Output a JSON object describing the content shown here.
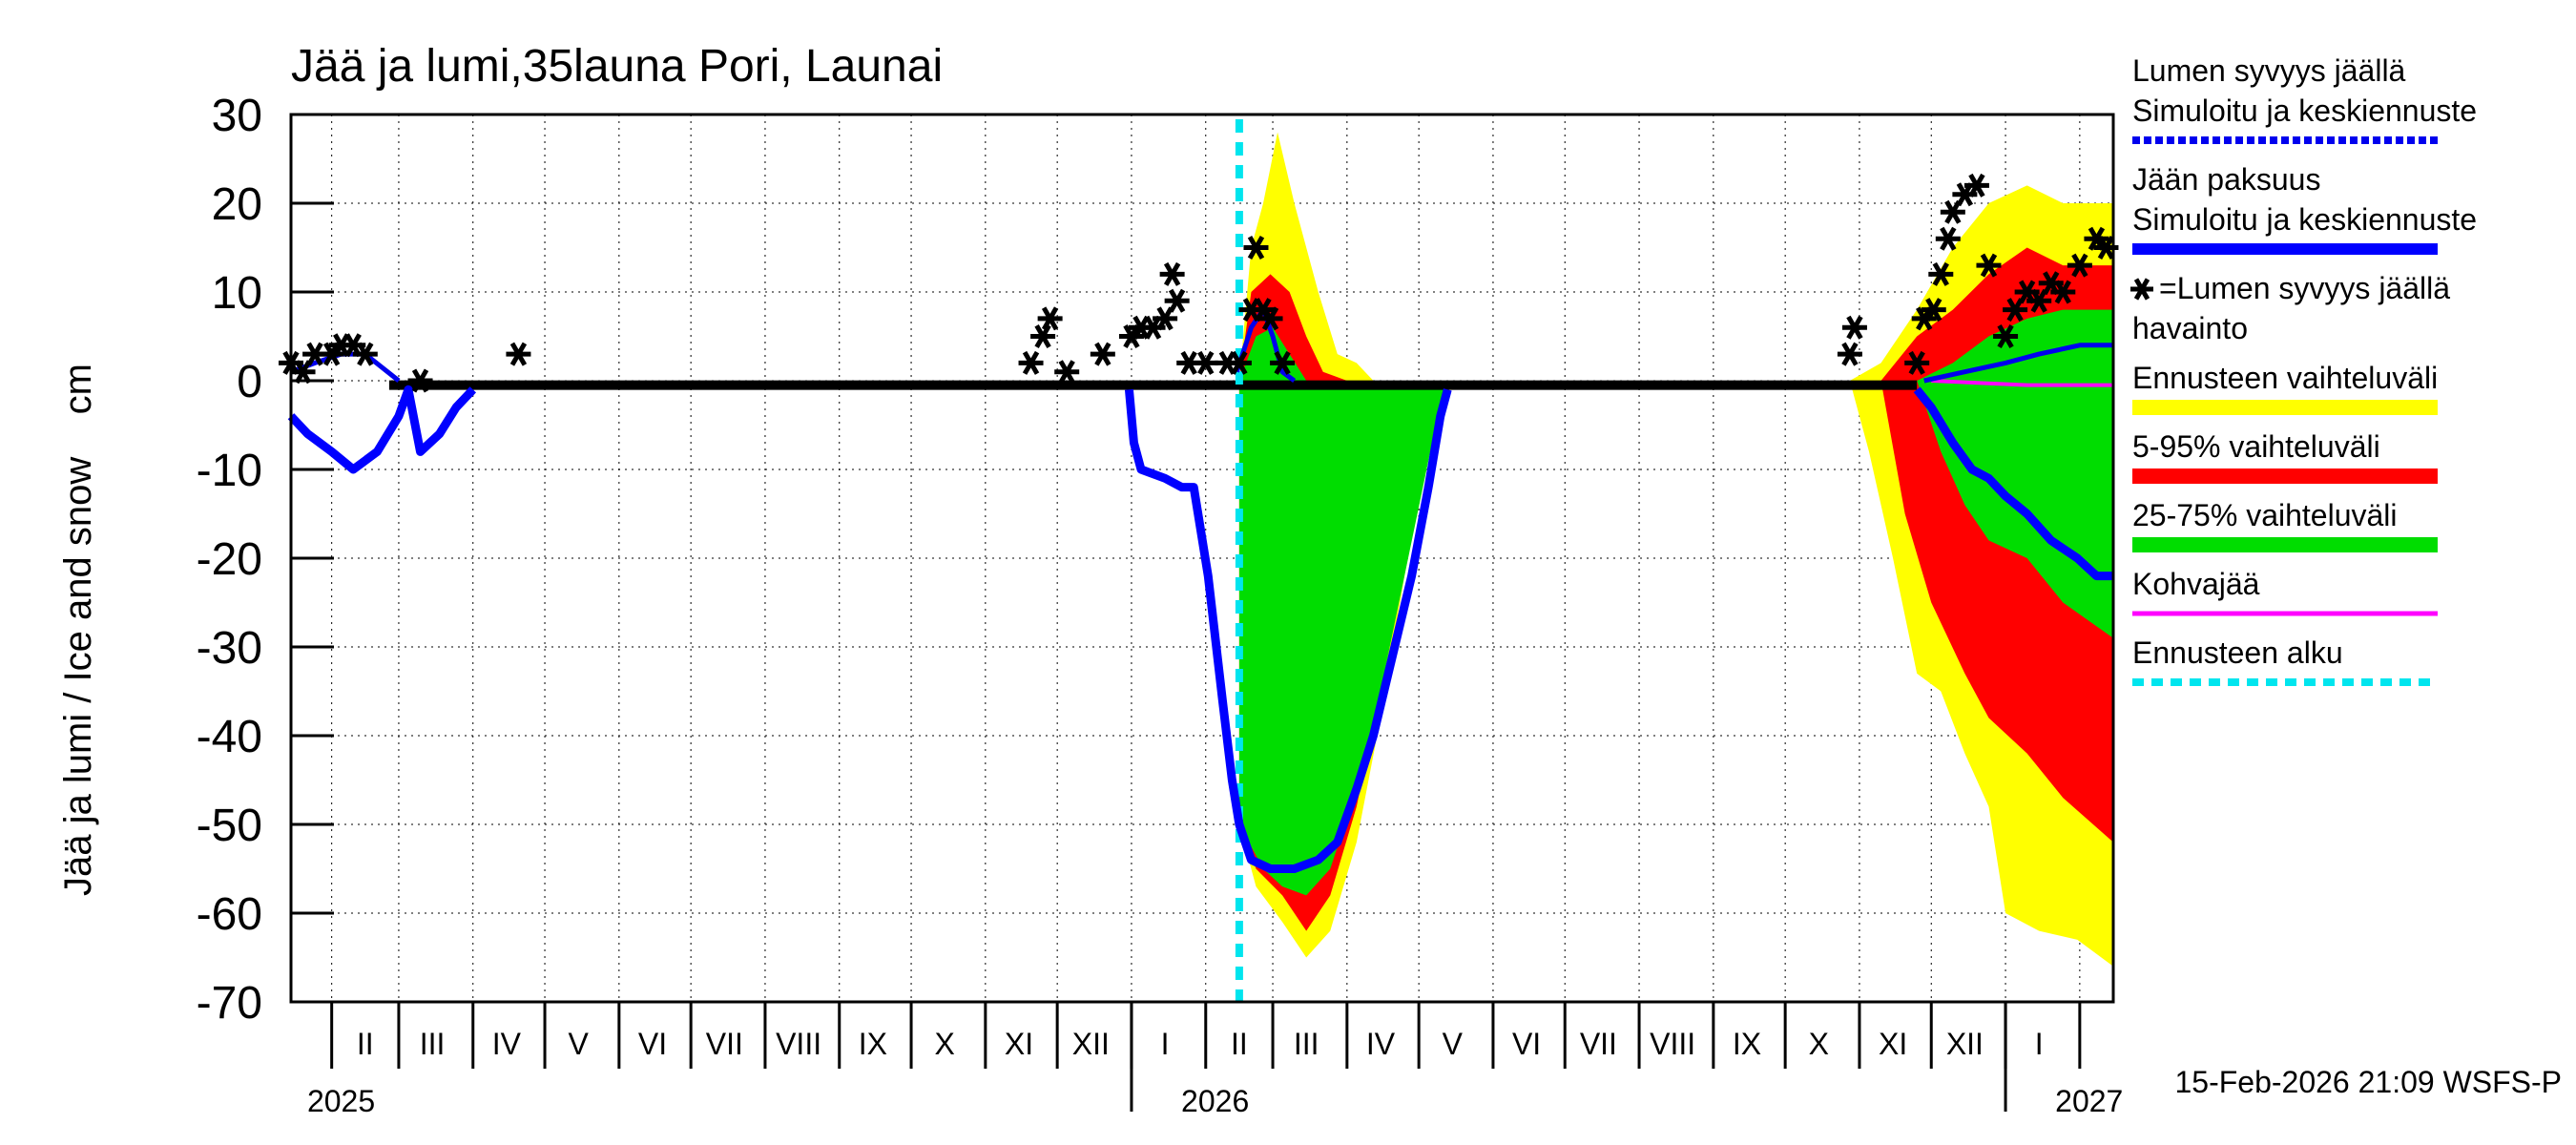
{
  "chart_data": {
    "type": "area",
    "title": "Jää ja lumi,35launa Pori, Launai",
    "ylabel": "Jää ja lumi / Ice and snow    cm",
    "ylim": [
      -70,
      30
    ],
    "yticks": [
      30,
      20,
      10,
      0,
      -10,
      -20,
      -30,
      -40,
      -50,
      -60,
      -70
    ],
    "grid": true,
    "xaxis": {
      "range": [
        "2025-01-15",
        "2027-02-15"
      ],
      "month_labels": [
        {
          "label": "II",
          "date": "2025-02-15"
        },
        {
          "label": "III",
          "date": "2025-03-15"
        },
        {
          "label": "IV",
          "date": "2025-04-15"
        },
        {
          "label": "V",
          "date": "2025-05-15"
        },
        {
          "label": "VI",
          "date": "2025-06-15"
        },
        {
          "label": "VII",
          "date": "2025-07-15"
        },
        {
          "label": "VIII",
          "date": "2025-08-15"
        },
        {
          "label": "IX",
          "date": "2025-09-15"
        },
        {
          "label": "X",
          "date": "2025-10-15"
        },
        {
          "label": "XI",
          "date": "2025-11-15"
        },
        {
          "label": "XII",
          "date": "2025-12-15"
        },
        {
          "label": "I",
          "date": "2026-01-15"
        },
        {
          "label": "II",
          "date": "2026-02-15"
        },
        {
          "label": "III",
          "date": "2026-03-15"
        },
        {
          "label": "IV",
          "date": "2026-04-15"
        },
        {
          "label": "V",
          "date": "2026-05-15"
        },
        {
          "label": "VI",
          "date": "2026-06-15"
        },
        {
          "label": "VII",
          "date": "2026-07-15"
        },
        {
          "label": "VIII",
          "date": "2026-08-15"
        },
        {
          "label": "IX",
          "date": "2026-09-15"
        },
        {
          "label": "X",
          "date": "2026-10-15"
        },
        {
          "label": "XI",
          "date": "2026-11-15"
        },
        {
          "label": "XII",
          "date": "2026-12-15"
        },
        {
          "label": "I",
          "date": "2027-01-15"
        }
      ],
      "year_labels": [
        {
          "label": "2025",
          "date": "2025-01-20"
        },
        {
          "label": "2026",
          "date": "2026-01-20"
        },
        {
          "label": "2027",
          "date": "2027-01-20"
        }
      ],
      "year_boundaries": [
        "2026-01-01",
        "2027-01-01"
      ]
    },
    "forecast_start": "2026-02-15",
    "legend": [
      {
        "label": "Lumen syvyys jäällä\nSimuloitu ja keskiennuste",
        "color": "#0000ee",
        "style": "dashed"
      },
      {
        "label": "Jään paksuus\nSimuloitu ja keskiennuste",
        "color": "#0000ff",
        "style": "solid"
      },
      {
        "label": "=Lumen syvyys jäällä\nhavainto",
        "color": "#000000",
        "style": "marker"
      },
      {
        "label": "Ennusteen vaihteluväli",
        "color": "#ffff00",
        "style": "band"
      },
      {
        "label": "5-95% vaihteluväli",
        "color": "#ff0000",
        "style": "band"
      },
      {
        "label": "25-75% vaihteluväli",
        "color": "#00dd00",
        "style": "band"
      },
      {
        "label": "Kohvajää",
        "color": "#ff00ff",
        "style": "line"
      },
      {
        "label": "Ennusteen alku",
        "color": "#00e5ee",
        "style": "dotted"
      }
    ],
    "footer": "15-Feb-2026 21:09 WSFS-P",
    "colors": {
      "yellow": "#ffff00",
      "red": "#ff0000",
      "green": "#00dd00",
      "blue": "#0000ff",
      "magenta": "#ff00ff",
      "cyan": "#00e5ee"
    },
    "series": [
      {
        "name": "Jään paksuus",
        "points": [
          [
            "2025-01-15",
            -4
          ],
          [
            "2025-01-22",
            -6
          ],
          [
            "2025-02-01",
            -8
          ],
          [
            "2025-02-10",
            -10
          ],
          [
            "2025-02-20",
            -8
          ],
          [
            "2025-03-01",
            -4
          ],
          [
            "2025-03-05",
            -1
          ],
          [
            "2025-03-10",
            -8
          ],
          [
            "2025-03-18",
            -6
          ],
          [
            "2025-03-25",
            -3
          ],
          [
            "2025-04-01",
            -1
          ],
          [
            "2025-12-31",
            -1
          ],
          [
            "2026-01-02",
            -7
          ],
          [
            "2026-01-05",
            -10
          ],
          [
            "2026-01-15",
            -11
          ],
          [
            "2026-01-22",
            -12
          ],
          [
            "2026-01-27",
            -12
          ],
          [
            "2026-02-02",
            -22
          ],
          [
            "2026-02-08",
            -36
          ],
          [
            "2026-02-12",
            -45
          ],
          [
            "2026-02-15",
            -50
          ],
          [
            "2026-02-20",
            -54
          ],
          [
            "2026-02-28",
            -55
          ],
          [
            "2026-03-10",
            -55
          ],
          [
            "2026-03-20",
            -54
          ],
          [
            "2026-03-28",
            -52
          ],
          [
            "2026-04-05",
            -46
          ],
          [
            "2026-04-12",
            -40
          ],
          [
            "2026-04-20",
            -31
          ],
          [
            "2026-04-28",
            -22
          ],
          [
            "2026-05-05",
            -12
          ],
          [
            "2026-05-10",
            -4
          ],
          [
            "2026-05-13",
            -1
          ],
          [
            "2026-11-25",
            -1
          ],
          [
            "2026-12-01",
            -3
          ],
          [
            "2026-12-10",
            -7
          ],
          [
            "2026-12-18",
            -10
          ],
          [
            "2026-12-25",
            -11
          ],
          [
            "2027-01-01",
            -13
          ],
          [
            "2027-01-10",
            -15
          ],
          [
            "2027-01-20",
            -18
          ],
          [
            "2027-01-31",
            -20
          ],
          [
            "2027-02-08",
            -22
          ],
          [
            "2027-02-15",
            -22
          ]
        ]
      },
      {
        "name": "Lumen syvyys jäällä",
        "points": [
          [
            "2025-01-15",
            1
          ],
          [
            "2025-01-25",
            2
          ],
          [
            "2025-02-05",
            3
          ],
          [
            "2025-02-15",
            3
          ],
          [
            "2025-03-01",
            0
          ],
          [
            "2026-02-14",
            1
          ],
          [
            "2026-02-20",
            6
          ],
          [
            "2026-02-25",
            8
          ],
          [
            "2026-03-01",
            5
          ],
          [
            "2026-03-05",
            1
          ],
          [
            "2026-03-10",
            0
          ],
          [
            "2026-11-28",
            0
          ],
          [
            "2026-12-15",
            1
          ],
          [
            "2027-01-01",
            2
          ],
          [
            "2027-01-15",
            3
          ],
          [
            "2027-02-01",
            4
          ],
          [
            "2027-02-15",
            4
          ]
        ]
      },
      {
        "name": "Kohvajää",
        "points": [
          [
            "2025-01-15",
            0
          ],
          [
            "2026-12-01",
            0
          ],
          [
            "2027-01-10",
            -0.5
          ],
          [
            "2027-02-15",
            -0.5
          ]
        ]
      },
      {
        "name": "Ennusteen vaihteluväli",
        "upper": [
          [
            "2026-02-15",
            0
          ],
          [
            "2026-02-20",
            15
          ],
          [
            "2026-02-25",
            20
          ],
          [
            "2026-03-03",
            28
          ],
          [
            "2026-03-10",
            20
          ],
          [
            "2026-03-20",
            10
          ],
          [
            "2026-03-28",
            3
          ],
          [
            "2026-04-05",
            2
          ],
          [
            "2026-04-12",
            0
          ],
          [
            "2026-05-10",
            0
          ],
          [
            "2026-10-28",
            0
          ],
          [
            "2026-11-10",
            2
          ],
          [
            "2026-11-25",
            8
          ],
          [
            "2026-12-10",
            15
          ],
          [
            "2026-12-25",
            20
          ],
          [
            "2027-01-10",
            22
          ],
          [
            "2027-01-25",
            20
          ],
          [
            "2027-02-15",
            20
          ]
        ],
        "lower": [
          [
            "2026-02-15",
            -50
          ],
          [
            "2026-02-22",
            -57
          ],
          [
            "2026-03-05",
            -61
          ],
          [
            "2026-03-15",
            -65
          ],
          [
            "2026-03-25",
            -62
          ],
          [
            "2026-04-05",
            -52
          ],
          [
            "2026-04-15",
            -38
          ],
          [
            "2026-04-25",
            -22
          ],
          [
            "2026-05-05",
            -8
          ],
          [
            "2026-05-15",
            0
          ],
          [
            "2026-10-28",
            0
          ],
          [
            "2026-11-05",
            -8
          ],
          [
            "2026-11-15",
            -20
          ],
          [
            "2026-11-25",
            -33
          ],
          [
            "2026-12-05",
            -35
          ],
          [
            "2026-12-15",
            -42
          ],
          [
            "2026-12-25",
            -48
          ],
          [
            "2027-01-01",
            -60
          ],
          [
            "2027-01-15",
            -62
          ],
          [
            "2027-01-31",
            -63
          ],
          [
            "2027-02-15",
            -66
          ]
        ]
      },
      {
        "name": "5-95% vaihteluväli",
        "upper": [
          [
            "2026-02-15",
            0
          ],
          [
            "2026-02-20",
            10
          ],
          [
            "2026-02-28",
            12
          ],
          [
            "2026-03-08",
            10
          ],
          [
            "2026-03-15",
            5
          ],
          [
            "2026-03-22",
            1
          ],
          [
            "2026-04-01",
            0
          ],
          [
            "2026-05-10",
            0
          ],
          [
            "2026-11-10",
            0
          ],
          [
            "2026-11-25",
            5
          ],
          [
            "2026-12-10",
            8
          ],
          [
            "2026-12-25",
            12
          ],
          [
            "2027-01-10",
            15
          ],
          [
            "2027-01-25",
            13
          ],
          [
            "2027-02-15",
            13
          ]
        ],
        "lower": [
          [
            "2026-02-15",
            -50
          ],
          [
            "2026-02-22",
            -55
          ],
          [
            "2026-03-05",
            -58
          ],
          [
            "2026-03-15",
            -62
          ],
          [
            "2026-03-25",
            -58
          ],
          [
            "2026-04-05",
            -48
          ],
          [
            "2026-04-15",
            -35
          ],
          [
            "2026-04-25",
            -20
          ],
          [
            "2026-05-05",
            -6
          ],
          [
            "2026-05-15",
            0
          ],
          [
            "2026-11-10",
            0
          ],
          [
            "2026-11-20",
            -15
          ],
          [
            "2026-12-01",
            -25
          ],
          [
            "2026-12-15",
            -33
          ],
          [
            "2026-12-25",
            -38
          ],
          [
            "2027-01-10",
            -42
          ],
          [
            "2027-01-25",
            -47
          ],
          [
            "2027-02-15",
            -52
          ]
        ]
      },
      {
        "name": "25-75% vaihteluväli",
        "upper": [
          [
            "2026-02-15",
            0
          ],
          [
            "2026-02-22",
            5
          ],
          [
            "2026-03-01",
            6
          ],
          [
            "2026-03-08",
            3
          ],
          [
            "2026-03-15",
            0
          ],
          [
            "2026-05-10",
            0
          ],
          [
            "2026-11-25",
            0
          ],
          [
            "2026-12-10",
            2
          ],
          [
            "2026-12-25",
            5
          ],
          [
            "2027-01-10",
            7
          ],
          [
            "2027-01-25",
            8
          ],
          [
            "2027-02-15",
            8
          ]
        ],
        "lower": [
          [
            "2026-02-15",
            -50
          ],
          [
            "2026-02-25",
            -55
          ],
          [
            "2026-03-05",
            -57
          ],
          [
            "2026-03-15",
            -58
          ],
          [
            "2026-03-25",
            -55
          ],
          [
            "2026-04-05",
            -46
          ],
          [
            "2026-04-15",
            -35
          ],
          [
            "2026-04-25",
            -22
          ],
          [
            "2026-05-05",
            -9
          ],
          [
            "2026-05-12",
            0
          ],
          [
            "2026-11-25",
            0
          ],
          [
            "2026-12-05",
            -8
          ],
          [
            "2026-12-15",
            -14
          ],
          [
            "2026-12-25",
            -18
          ],
          [
            "2027-01-10",
            -20
          ],
          [
            "2027-01-25",
            -25
          ],
          [
            "2027-02-15",
            -29
          ]
        ]
      },
      {
        "name": "Lumen syvyys jäällä havainto",
        "points": [
          [
            "2025-01-15",
            2
          ],
          [
            "2025-01-20",
            1
          ],
          [
            "2025-01-25",
            3
          ],
          [
            "2025-02-01",
            3
          ],
          [
            "2025-02-05",
            4
          ],
          [
            "2025-02-10",
            4
          ],
          [
            "2025-02-15",
            3
          ],
          [
            "2025-03-10",
            0
          ],
          [
            "2025-04-20",
            3
          ],
          [
            "2025-11-20",
            2
          ],
          [
            "2025-11-25",
            5
          ],
          [
            "2025-11-28",
            7
          ],
          [
            "2025-12-05",
            1
          ],
          [
            "2025-12-20",
            3
          ],
          [
            "2026-01-01",
            5
          ],
          [
            "2026-01-05",
            6
          ],
          [
            "2026-01-10",
            6
          ],
          [
            "2026-01-15",
            7
          ],
          [
            "2026-01-18",
            12
          ],
          [
            "2026-01-20",
            9
          ],
          [
            "2026-01-25",
            2
          ],
          [
            "2026-02-01",
            2
          ],
          [
            "2026-02-10",
            2
          ],
          [
            "2026-02-15",
            2
          ],
          [
            "2026-02-20",
            8
          ],
          [
            "2026-02-22",
            15
          ],
          [
            "2026-02-25",
            8
          ],
          [
            "2026-02-28",
            7
          ],
          [
            "2026-03-05",
            2
          ],
          [
            "2026-10-28",
            3
          ],
          [
            "2026-10-30",
            6
          ],
          [
            "2026-11-25",
            2
          ],
          [
            "2026-11-28",
            7
          ],
          [
            "2026-12-02",
            8
          ],
          [
            "2026-12-05",
            12
          ],
          [
            "2026-12-08",
            16
          ],
          [
            "2026-12-10",
            19
          ],
          [
            "2026-12-15",
            21
          ],
          [
            "2026-12-20",
            22
          ],
          [
            "2026-12-25",
            13
          ],
          [
            "2027-01-01",
            5
          ],
          [
            "2027-01-05",
            8
          ],
          [
            "2027-01-10",
            10
          ],
          [
            "2027-01-15",
            9
          ],
          [
            "2027-01-20",
            11
          ],
          [
            "2027-01-25",
            10
          ],
          [
            "2027-02-01",
            13
          ],
          [
            "2027-02-08",
            16
          ],
          [
            "2027-02-12",
            15
          ]
        ]
      }
    ]
  }
}
